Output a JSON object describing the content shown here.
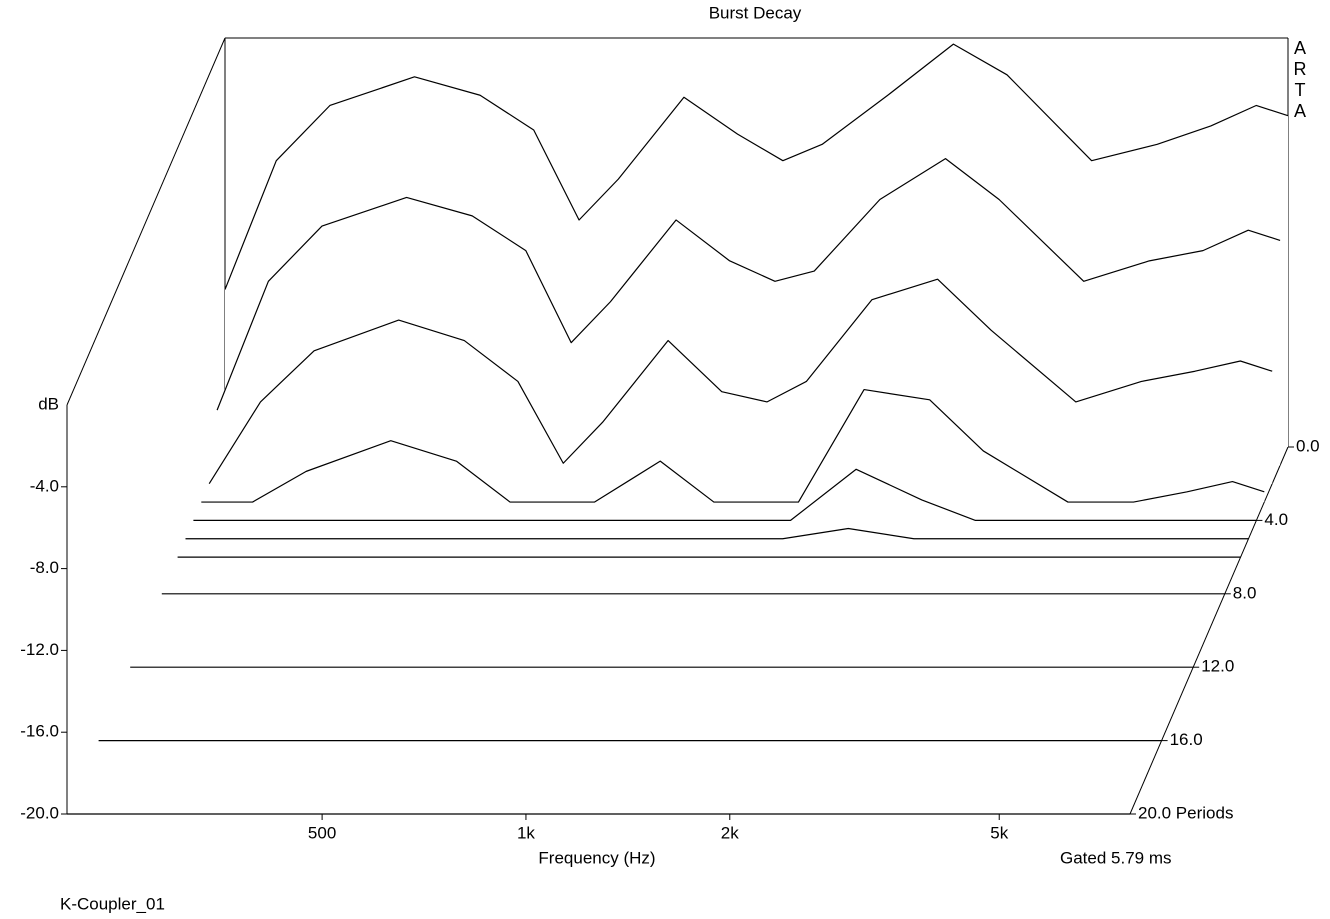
{
  "chart_data": {
    "type": "waterfall",
    "title": "Burst Decay",
    "brand": "ARTA",
    "x_label": "Frequency (Hz)",
    "y_label": "dB",
    "gate_note": "Gated 5.79 ms",
    "footer": "K-Coupler_01",
    "log_x": true,
    "xlim": [
      210,
      7800
    ],
    "xticks": [
      500,
      {
        "value": 1000,
        "label": "1k"
      },
      {
        "value": 2000,
        "label": "2k"
      },
      {
        "value": 5000,
        "label": "5k"
      }
    ],
    "ylim": [
      -20,
      0
    ],
    "yticks": [
      {
        "value": -4,
        "label": "-4.0"
      },
      {
        "value": -8,
        "label": "-8.0"
      },
      {
        "value": -12,
        "label": "-12.0"
      },
      {
        "value": -16,
        "label": "-16.0"
      },
      {
        "value": -20,
        "label": "-20.0"
      }
    ],
    "zlim": [
      0,
      20
    ],
    "zticks": [
      {
        "value": 0,
        "label": "0.0"
      },
      {
        "value": 4,
        "label": "4.0"
      },
      {
        "value": 8,
        "label": "8.0"
      },
      {
        "value": 12,
        "label": "12.0"
      },
      {
        "value": 16,
        "label": "16.0"
      },
      {
        "value": 20,
        "label": "20.0 Periods"
      }
    ],
    "color": "#000000",
    "x": [
      210,
      250,
      300,
      400,
      500,
      600,
      700,
      800,
      1000,
      1200,
      1400,
      1600,
      2000,
      2500,
      3000,
      4000,
      5000,
      6000,
      7000,
      7800
    ],
    "slices": [
      {
        "period": 0,
        "values": [
          -12.3,
          -6.0,
          -3.3,
          -1.9,
          -2.8,
          -4.5,
          -8.9,
          -6.9,
          -2.9,
          -4.7,
          -6.0,
          -5.2,
          -2.8,
          -0.3,
          -1.8,
          -6.0,
          -5.2,
          -4.3,
          -3.3,
          -3.8
        ]
      },
      {
        "period": 1,
        "values": [
          -17.3,
          -11.0,
          -8.3,
          -6.9,
          -7.8,
          -9.5,
          -14.0,
          -12.0,
          -8.0,
          -10.0,
          -11.0,
          -10.5,
          -7.0,
          -5.0,
          -7.0,
          -11.0,
          -10.0,
          -9.5,
          -8.5,
          -9.0
        ]
      },
      {
        "period": 2,
        "values": [
          -20.0,
          -16.0,
          -13.5,
          -12.0,
          -13.0,
          -15.0,
          -19.0,
          -17.0,
          -13.0,
          -15.5,
          -16.0,
          -15.0,
          -11.0,
          -10.0,
          -12.5,
          -16.0,
          -15.0,
          -14.5,
          -14.0,
          -14.5
        ]
      },
      {
        "period": 3,
        "values": [
          -20.0,
          -20.0,
          -18.5,
          -17.0,
          -18.0,
          -20.0,
          -20.0,
          -20.0,
          -18.0,
          -20.0,
          -20.0,
          -20.0,
          -14.5,
          -15.0,
          -17.5,
          -20.0,
          -20.0,
          -19.5,
          -19.0,
          -19.5
        ]
      },
      {
        "period": 4,
        "values": [
          -20.0,
          -20.0,
          -20.0,
          -20.0,
          -20.0,
          -20.0,
          -20.0,
          -20.0,
          -20.0,
          -20.0,
          -20.0,
          -20.0,
          -17.5,
          -19.0,
          -20.0,
          -20.0,
          -20.0,
          -20.0,
          -20.0,
          -20.0
        ]
      },
      {
        "period": 5,
        "values": [
          -20.0,
          -20.0,
          -20.0,
          -20.0,
          -20.0,
          -20.0,
          -20.0,
          -20.0,
          -20.0,
          -20.0,
          -20.0,
          -20.0,
          -19.5,
          -20.0,
          -20.0,
          -20.0,
          -20.0,
          -20.0,
          -20.0,
          -20.0
        ]
      },
      {
        "period": 6,
        "values": [
          -20.0,
          -20.0,
          -20.0,
          -20.0,
          -20.0,
          -20.0,
          -20.0,
          -20.0,
          -20.0,
          -20.0,
          -20.0,
          -20.0,
          -20.0,
          -20.0,
          -20.0,
          -20.0,
          -20.0,
          -20.0,
          -20.0,
          -20.0
        ]
      },
      {
        "period": 8,
        "values": [
          -20.0,
          -20.0,
          -20.0,
          -20.0,
          -20.0,
          -20.0,
          -20.0,
          -20.0,
          -20.0,
          -20.0,
          -20.0,
          -20.0,
          -20.0,
          -20.0,
          -20.0,
          -20.0,
          -20.0,
          -20.0,
          -20.0,
          -20.0
        ]
      },
      {
        "period": 12,
        "values": [
          -20.0,
          -20.0,
          -20.0,
          -20.0,
          -20.0,
          -20.0,
          -20.0,
          -20.0,
          -20.0,
          -20.0,
          -20.0,
          -20.0,
          -20.0,
          -20.0,
          -20.0,
          -20.0,
          -20.0,
          -20.0,
          -20.0,
          -20.0
        ]
      },
      {
        "period": 16,
        "values": [
          -20.0,
          -20.0,
          -20.0,
          -20.0,
          -20.0,
          -20.0,
          -20.0,
          -20.0,
          -20.0,
          -20.0,
          -20.0,
          -20.0,
          -20.0,
          -20.0,
          -20.0,
          -20.0,
          -20.0,
          -20.0,
          -20.0,
          -20.0
        ]
      },
      {
        "period": 20,
        "values": [
          -20.0,
          -20.0,
          -20.0,
          -20.0,
          -20.0,
          -20.0,
          -20.0,
          -20.0,
          -20.0,
          -20.0,
          -20.0,
          -20.0,
          -20.0,
          -20.0,
          -20.0,
          -20.0,
          -20.0,
          -20.0,
          -20.0,
          -20.0
        ]
      }
    ]
  }
}
